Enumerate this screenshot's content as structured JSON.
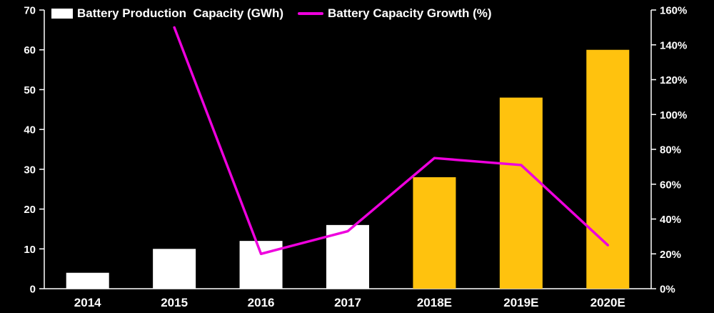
{
  "legend": {
    "bar_label": "Battery Production  Capacity (GWh)",
    "line_label": "Battery Capacity Growth (%)"
  },
  "chart_data": {
    "type": "bar",
    "subtype": "bar+line combo, dual axis",
    "title": "",
    "categories": [
      "2014",
      "2015",
      "2016",
      "2017",
      "2018E",
      "2019E",
      "2020E"
    ],
    "series": [
      {
        "name": "Battery Production  Capacity (GWh)",
        "type": "bar",
        "axis": "left",
        "values": [
          4,
          10,
          12,
          16,
          28,
          48,
          60
        ],
        "bar_colors": [
          "#FFFFFF",
          "#FFFFFF",
          "#FFFFFF",
          "#FFFFFF",
          "#FFC20E",
          "#FFC20E",
          "#FFC20E"
        ]
      },
      {
        "name": "Battery Capacity Growth (%)",
        "type": "line",
        "axis": "right",
        "values": [
          null,
          150,
          20,
          33,
          75,
          71,
          25
        ],
        "color": "#EE00DD"
      }
    ],
    "left_axis": {
      "min": 0,
      "max": 70,
      "tick_step": 10,
      "ticks": [
        0,
        10,
        20,
        30,
        40,
        50,
        60,
        70
      ],
      "suffix": ""
    },
    "right_axis": {
      "min": 0,
      "max": 160,
      "tick_step": 20,
      "ticks": [
        0,
        20,
        40,
        60,
        80,
        100,
        120,
        140,
        160
      ],
      "suffix": "%"
    },
    "grid": "off",
    "legend_position": "top",
    "background": "#000000",
    "text_color": "#FFFFFF"
  }
}
